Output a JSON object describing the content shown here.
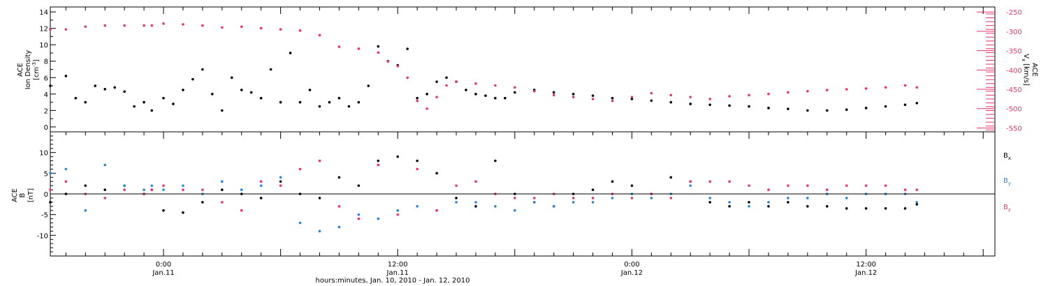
{
  "colors": {
    "black": "#000000",
    "pink": "#e8336b",
    "blue": "#2a84d6"
  },
  "chart_data": [
    {
      "type": "scatter",
      "panel": "top",
      "ylabel_left": [
        "ACE",
        "Ion Density",
        "[cm⁻³]"
      ],
      "ylabel_right": [
        "ACE",
        "Vx [km/s]"
      ],
      "x_unit": "hours since Jan. 10, 2010 00:00",
      "xlim": [
        18.2,
        66.6
      ],
      "ylim_left": [
        -0.6,
        14.6
      ],
      "yticks_left": [
        0,
        2,
        4,
        6,
        8,
        10,
        12,
        14
      ],
      "ylim_right": [
        -560,
        -237
      ],
      "yticks_right": [
        -250,
        -300,
        -350,
        -400,
        -450,
        -500,
        -550
      ],
      "series": [
        {
          "name": "",
          "axis": "left",
          "color": "#000000",
          "x": [
            18.2,
            19.0,
            19.5,
            20.0,
            20.5,
            21.0,
            21.5,
            22.0,
            22.5,
            23.0,
            23.4,
            24.0,
            24.5,
            25.0,
            25.5,
            26.0,
            26.5,
            27.0,
            27.5,
            28.0,
            28.5,
            29.0,
            29.5,
            30.0,
            30.5,
            31.0,
            31.5,
            32.0,
            32.5,
            33.0,
            33.5,
            34.0,
            34.5,
            35.0,
            35.5,
            36.0,
            36.5,
            37.0,
            37.5,
            38.0,
            38.5,
            39.0,
            39.5,
            40.0,
            40.5,
            41.0,
            41.5,
            42.0,
            43.0,
            44.0,
            45.0,
            46.0,
            47.0,
            48.0,
            49.0,
            50.0,
            51.0,
            52.0,
            53.0,
            54.0,
            55.0,
            56.0,
            57.0,
            58.0,
            59.0,
            60.0,
            61.0,
            62.0,
            62.6
          ],
          "y": [
            5.0,
            6.2,
            3.5,
            3.0,
            5.0,
            4.6,
            4.8,
            4.3,
            2.5,
            3.0,
            2.0,
            3.5,
            2.8,
            4.5,
            5.8,
            7.0,
            4.0,
            2.0,
            6.0,
            4.5,
            4.2,
            3.5,
            7.0,
            3.0,
            9.0,
            3.0,
            4.5,
            2.5,
            3.0,
            3.5,
            2.5,
            3.0,
            5.0,
            9.8,
            8.0,
            7.5,
            9.5,
            3.5,
            4.0,
            5.5,
            6.0,
            5.5,
            4.5,
            4.0,
            3.8,
            3.5,
            3.5,
            4.2,
            4.5,
            4.2,
            4.0,
            3.8,
            3.5,
            3.4,
            3.2,
            3.0,
            2.8,
            2.7,
            2.6,
            2.5,
            2.3,
            2.2,
            2.0,
            2.0,
            2.1,
            2.3,
            2.5,
            2.7,
            2.9
          ]
        },
        {
          "name": "",
          "axis": "right",
          "color": "#e8336b",
          "x": [
            18.2,
            19.0,
            20.0,
            21.0,
            22.0,
            23.0,
            23.4,
            24.0,
            25.0,
            26.0,
            27.0,
            28.0,
            29.0,
            30.0,
            31.0,
            32.0,
            33.0,
            34.0,
            35.0,
            35.5,
            36.0,
            36.5,
            37.0,
            37.5,
            38.0,
            38.5,
            39.0,
            40.0,
            41.0,
            42.0,
            43.0,
            44.0,
            45.0,
            46.0,
            47.0,
            48.0,
            49.0,
            50.0,
            51.0,
            52.0,
            53.0,
            54.0,
            55.0,
            56.0,
            57.0,
            58.0,
            59.0,
            60.0,
            61.0,
            62.0,
            62.6
          ],
          "y": [
            -295,
            -295,
            -288,
            -285,
            -285,
            -285,
            -285,
            -280,
            -282,
            -285,
            -290,
            -288,
            -292,
            -295,
            -298,
            -310,
            -340,
            -345,
            -355,
            -378,
            -390,
            -420,
            -480,
            -500,
            -470,
            -440,
            -430,
            -435,
            -440,
            -445,
            -455,
            -465,
            -470,
            -475,
            -480,
            -470,
            -460,
            -465,
            -470,
            -475,
            -468,
            -465,
            -462,
            -458,
            -455,
            -452,
            -450,
            -448,
            -445,
            -440,
            -445
          ]
        }
      ]
    },
    {
      "type": "scatter",
      "panel": "bottom",
      "ylabel_left": [
        "ACE",
        "B",
        "[nT]"
      ],
      "x_unit": "hours since Jan. 10, 2010 00:00",
      "xlim": [
        18.2,
        66.6
      ],
      "ylim": [
        -15,
        15
      ],
      "yticks": [
        -10,
        -5,
        0,
        5,
        10
      ],
      "legend_position": "right",
      "series": [
        {
          "name": "Bx",
          "color": "#000000",
          "x": [
            18.2,
            19.0,
            20.0,
            21.0,
            22.0,
            23.0,
            23.4,
            24.0,
            25.0,
            26.0,
            27.0,
            28.0,
            29.0,
            30.0,
            31.0,
            32.0,
            33.0,
            34.0,
            35.0,
            36.0,
            37.0,
            38.0,
            39.0,
            40.0,
            41.0,
            42.0,
            43.0,
            44.0,
            45.0,
            46.0,
            47.0,
            48.0,
            49.0,
            50.0,
            51.0,
            52.0,
            53.0,
            54.0,
            55.0,
            56.0,
            57.0,
            58.0,
            59.0,
            60.0,
            61.0,
            62.0,
            62.6
          ],
          "y": [
            -2,
            0,
            2,
            1,
            2,
            0,
            1,
            -4,
            -4.5,
            -2,
            1,
            0,
            -1,
            3,
            0,
            -1,
            4,
            2,
            8,
            9,
            8,
            5,
            -1,
            -3,
            8,
            0,
            -2,
            -3,
            0,
            1,
            3,
            2,
            0,
            4,
            3,
            -2,
            -3,
            -2,
            -3,
            -2,
            -3,
            -3,
            -3.5,
            -3.5,
            -3.5,
            -3.5,
            -2.5
          ]
        },
        {
          "name": "By",
          "color": "#2a84d6",
          "x": [
            18.2,
            19.0,
            20.0,
            21.0,
            22.0,
            23.0,
            23.4,
            24.0,
            25.0,
            26.0,
            27.0,
            28.0,
            29.0,
            30.0,
            31.0,
            32.0,
            33.0,
            34.0,
            35.0,
            36.0,
            37.0,
            38.0,
            39.0,
            40.0,
            41.0,
            42.0,
            43.0,
            44.0,
            45.0,
            46.0,
            47.0,
            48.0,
            49.0,
            50.0,
            51.0,
            52.0,
            53.0,
            54.0,
            55.0,
            56.0,
            57.0,
            58.0,
            59.0,
            60.0,
            61.0,
            62.0,
            62.6
          ],
          "y": [
            5,
            6,
            -4,
            7,
            2,
            1,
            2,
            1,
            2,
            0,
            3,
            1,
            2,
            4,
            -7,
            -9,
            -8,
            -5,
            -6,
            -4,
            -3,
            -4,
            -2,
            -2,
            -3,
            -4,
            -2,
            -3,
            -2,
            -2,
            -1,
            0,
            -1,
            0,
            2,
            -1,
            -2,
            -3,
            -2,
            -1,
            -1,
            0,
            -1,
            0,
            0,
            0,
            -2
          ]
        },
        {
          "name": "Bz",
          "color": "#e8336b",
          "x": [
            18.2,
            19.0,
            20.0,
            21.0,
            22.0,
            23.0,
            23.4,
            24.0,
            25.0,
            26.0,
            27.0,
            28.0,
            29.0,
            30.0,
            31.0,
            32.0,
            33.0,
            34.0,
            35.0,
            36.0,
            37.0,
            38.0,
            39.0,
            40.0,
            41.0,
            42.0,
            43.0,
            44.0,
            45.0,
            46.0,
            47.0,
            48.0,
            49.0,
            50.0,
            51.0,
            52.0,
            53.0,
            54.0,
            55.0,
            56.0,
            57.0,
            58.0,
            59.0,
            60.0,
            61.0,
            62.0,
            62.6
          ],
          "y": [
            1,
            3,
            0,
            -1,
            1,
            0,
            1,
            2,
            1,
            1,
            -2,
            -4,
            3,
            2,
            6,
            8,
            -3,
            -6,
            7,
            -5,
            6,
            -4,
            2,
            3,
            0,
            -1,
            -1,
            0,
            -1,
            -1,
            0,
            -1,
            0,
            -1,
            3,
            3,
            3,
            2,
            1,
            2,
            2,
            1,
            2,
            2,
            2,
            1,
            1
          ]
        }
      ]
    }
  ],
  "x_axis": {
    "ticks": [
      {
        "x": 24,
        "time": "0:00",
        "date": "Jan.11"
      },
      {
        "x": 36,
        "time": "12:00",
        "date": "Jan.11"
      },
      {
        "x": 48,
        "time": "0:00",
        "date": "Jan.12"
      },
      {
        "x": 60,
        "time": "12:00",
        "date": "Jan.12"
      }
    ],
    "xlabel": "hours:minutes, Jan. 10, 2010 - Jan. 12, 2010"
  },
  "labels": {
    "density_ace": "ACE",
    "density_name": "Ion Density",
    "density_unit": "[cm",
    "density_unit_exp": "-3",
    "density_unit_end": "]",
    "vx_ace": "ACE",
    "vx_name": "V",
    "vx_sub": "x",
    "vx_unit": "[km/s]",
    "b_ace": "ACE",
    "b_name": "B",
    "b_unit": "[nT]",
    "bx_main": "B",
    "bx_sub": "x",
    "by_main": "B",
    "by_sub": "y",
    "bz_main": "B",
    "bz_sub": "z"
  }
}
